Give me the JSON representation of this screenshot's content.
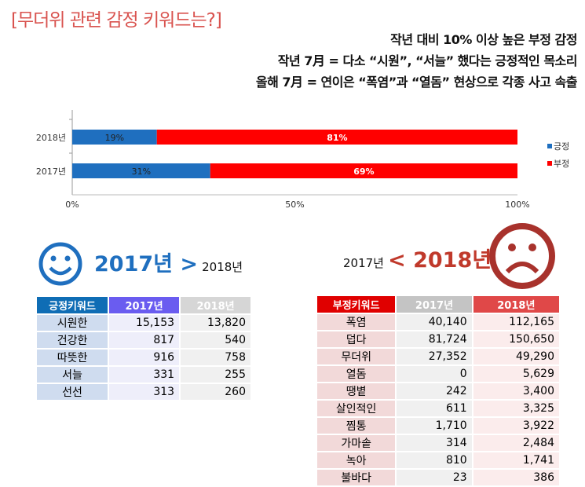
{
  "title": "[무더위 관련 감정 키워드는?]",
  "subtitles": [
    "작년 대비 10% 이상 높은 부정 감정",
    "작년 7月 = 다소 “시원”, “서늘” 했다는 긍정적인 목소리",
    "올해 7月 = 연이은 “폭염”과 “열돔” 현상으로 각종 사고 속출"
  ],
  "chart_data": {
    "type": "bar",
    "orientation": "horizontal",
    "stacked": true,
    "percent": true,
    "categories": [
      "2018년",
      "2017년"
    ],
    "series": [
      {
        "name": "긍정",
        "values": [
          19,
          31
        ],
        "labels": [
          "19%",
          "31%"
        ],
        "color": "#1f6fbf"
      },
      {
        "name": "부정",
        "values": [
          81,
          69
        ],
        "labels": [
          "81%",
          "69%"
        ],
        "color": "#ff0000"
      }
    ],
    "xticks": [
      "0%",
      "50%",
      "100%"
    ],
    "xlim": [
      0,
      100
    ],
    "legend": "right",
    "grid": false
  },
  "positive": {
    "big": "2017년 >",
    "small": "2018년",
    "headers": [
      "긍정키워드",
      "2017년",
      "2018년"
    ],
    "rows": [
      [
        "시원한",
        "15,153",
        "13,820"
      ],
      [
        "건강한",
        "817",
        "540"
      ],
      [
        "따뜻한",
        "916",
        "758"
      ],
      [
        "서늘",
        "331",
        "255"
      ],
      [
        "선선",
        "313",
        "260"
      ]
    ]
  },
  "negative": {
    "small": "2017년",
    "big": "< 2018년",
    "headers": [
      "부정키워드",
      "2017년",
      "2018년"
    ],
    "rows": [
      [
        "폭염",
        "40,140",
        "112,165"
      ],
      [
        "덥다",
        "81,724",
        "150,650"
      ],
      [
        "무더위",
        "27,352",
        "49,290"
      ],
      [
        "열돔",
        "0",
        "5,629"
      ],
      [
        "땡볕",
        "242",
        "3,400"
      ],
      [
        "살인적인",
        "611",
        "3,325"
      ],
      [
        "찜통",
        "1,710",
        "3,922"
      ],
      [
        "가마솥",
        "314",
        "2,484"
      ],
      [
        "녹아",
        "810",
        "1,741"
      ],
      [
        "불바다",
        "23",
        "386"
      ]
    ]
  }
}
